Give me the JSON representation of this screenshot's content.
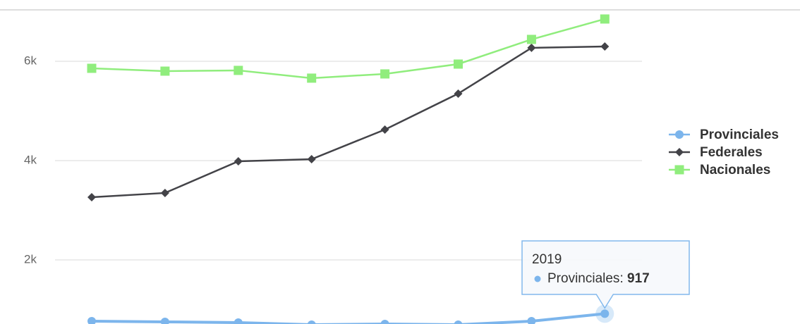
{
  "chart_data": {
    "type": "line",
    "categories": [
      null,
      null,
      null,
      null,
      null,
      null,
      null,
      "2019"
    ],
    "series": [
      {
        "name": "Provinciales",
        "color": "#7cb5ec",
        "marker": "circle",
        "values": [
          766,
          752,
          737,
          695,
          709,
          695,
          766,
          917
        ]
      },
      {
        "name": "Federales",
        "color": "#434348",
        "marker": "diamond",
        "values": [
          3262,
          3348,
          3986,
          4028,
          4624,
          5348,
          6270,
          6298
        ]
      },
      {
        "name": "Nacionales",
        "color": "#90ed7d",
        "marker": "square",
        "values": [
          5858,
          5801,
          5816,
          5660,
          5745,
          5943,
          6440,
          6851
        ]
      }
    ],
    "ylim": [
      709,
      7035
    ],
    "yticks": [
      {
        "value": 2000,
        "label": "2k"
      },
      {
        "value": 4000,
        "label": "4k"
      },
      {
        "value": 6000,
        "label": "6k"
      }
    ],
    "grid": true,
    "legend": "right",
    "tooltip": {
      "category": 7,
      "series": 0
    }
  }
}
